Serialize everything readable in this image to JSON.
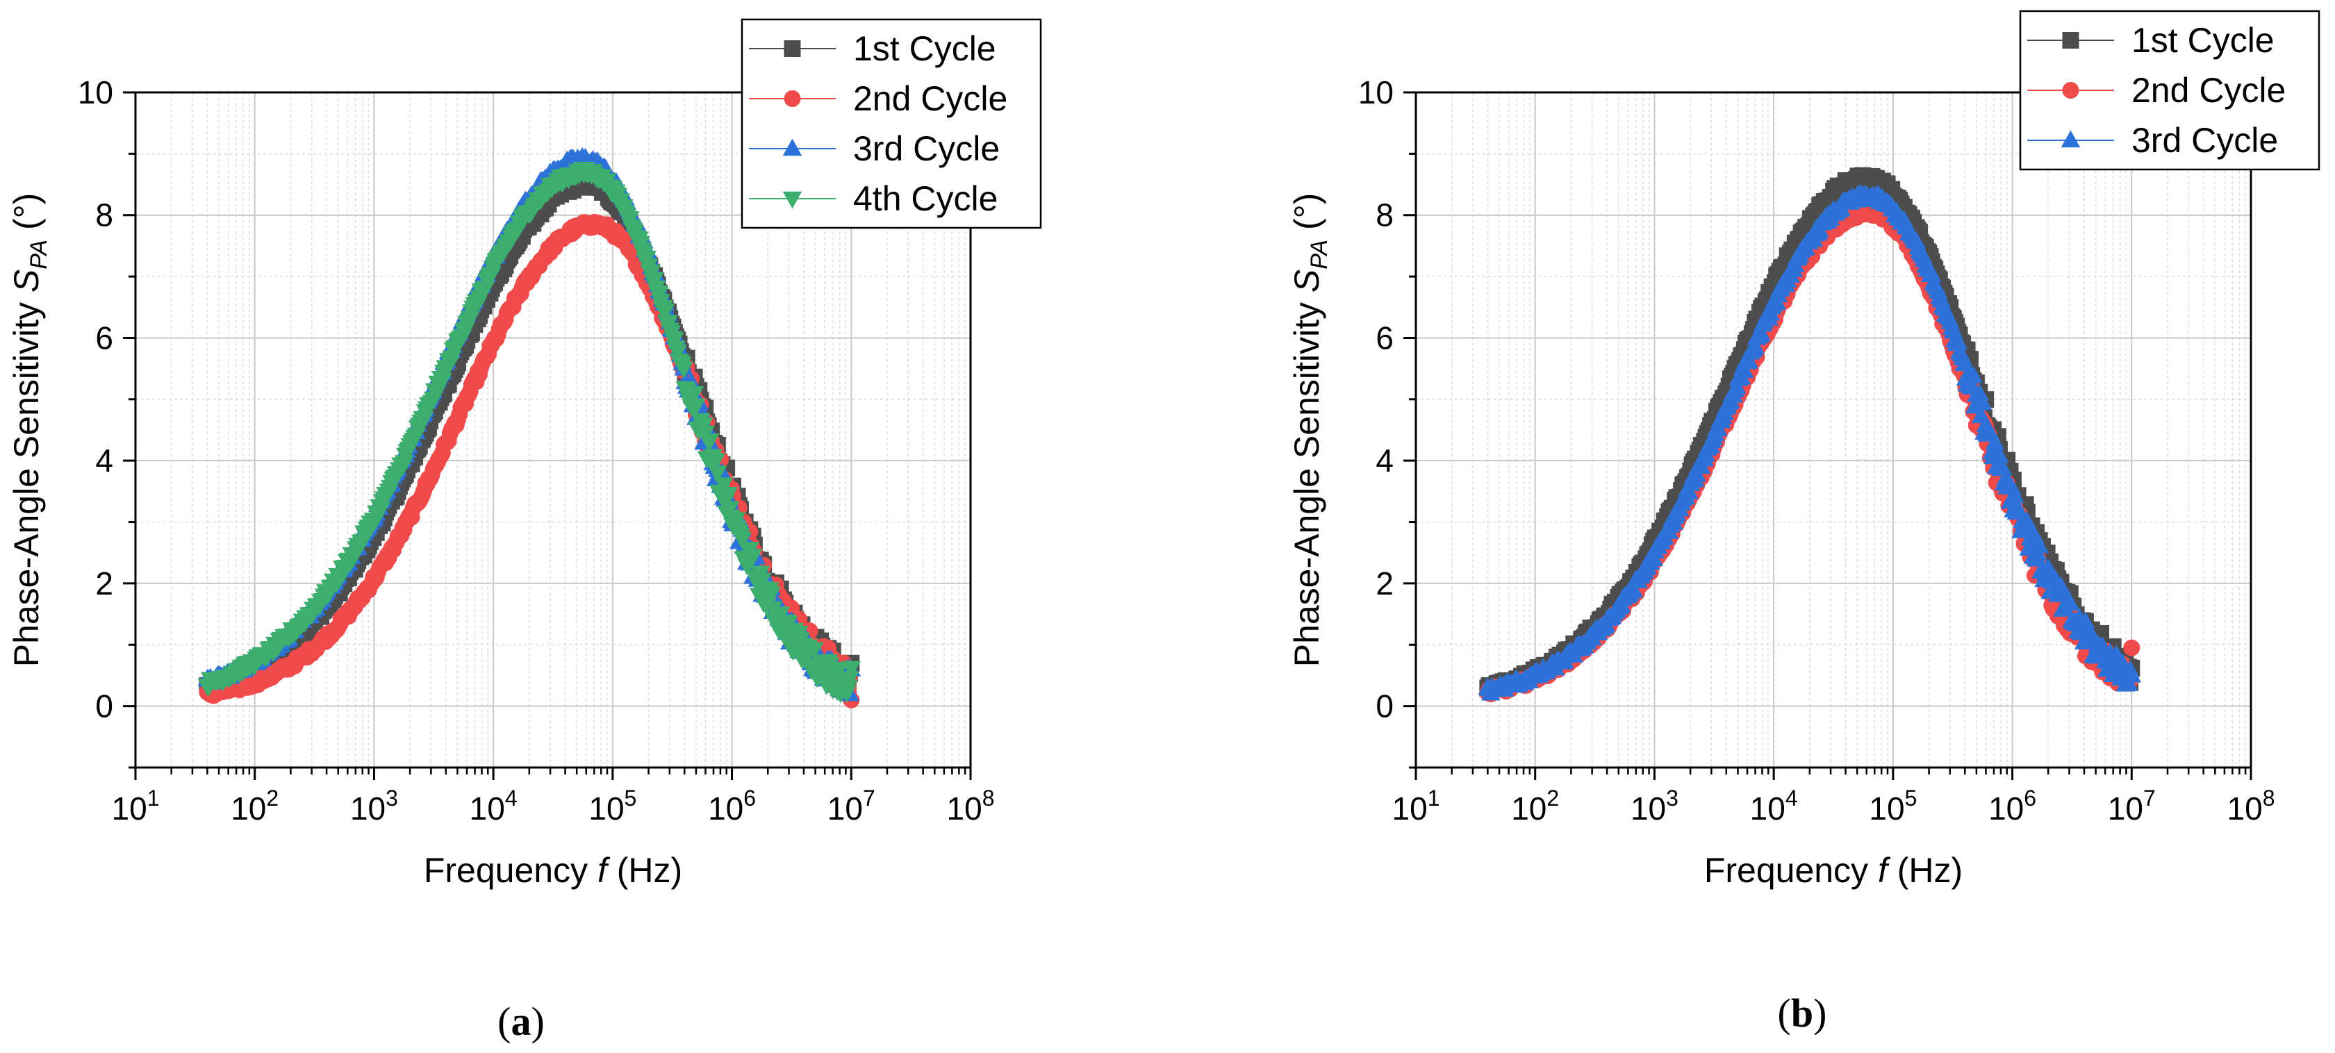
{
  "chart_data": [
    {
      "id": "a",
      "type": "scatter",
      "xscale": "log",
      "xlabel_parts": [
        "Frequency ",
        "f",
        " (Hz)"
      ],
      "ylabel_parts": [
        "Phase-Angle Sensitivity ",
        "S",
        "PA",
        " (°)"
      ],
      "xlim_exp": [
        1,
        8
      ],
      "ylim": [
        -1,
        10
      ],
      "xtick_exponents": [
        1,
        2,
        3,
        4,
        5,
        6,
        7,
        8
      ],
      "ytick_values": [
        0,
        2,
        4,
        6,
        8,
        10
      ],
      "grid": true,
      "legend_position": "top-right",
      "panel_label": "a",
      "series": [
        {
          "name": "1st Cycle",
          "marker": "square",
          "color": "#4d4d4d",
          "peak_hz": 60000,
          "peak": 8.5,
          "w_left": 1.18,
          "w_right": 0.9,
          "tail": 0.09,
          "end_value": 0.7
        },
        {
          "name": "2nd Cycle",
          "marker": "circle",
          "color": "#f04a4a",
          "peak_hz": 70000,
          "peak": 7.85,
          "w_left": 1.12,
          "w_right": 0.88,
          "tail": 0.08,
          "end_value": 0.1
        },
        {
          "name": "3rd Cycle",
          "marker": "triangle-up",
          "color": "#2d72d9",
          "peak_hz": 58000,
          "peak": 8.9,
          "w_left": 1.2,
          "w_right": 0.85,
          "tail": 0.12,
          "end_value": 0.6
        },
        {
          "name": "4th Cycle",
          "marker": "triangle-down",
          "color": "#3cae6e",
          "peak_hz": 60000,
          "peak": 8.7,
          "w_left": 1.22,
          "w_right": 0.84,
          "tail": 0.08,
          "end_value": 0.62
        }
      ],
      "x_range_hz": [
        40,
        10000000
      ]
    },
    {
      "id": "b",
      "type": "scatter",
      "xscale": "log",
      "xlabel_parts": [
        "Frequency ",
        "f",
        " (Hz)"
      ],
      "ylabel_parts": [
        "Phase-Angle Sensitivity ",
        "S",
        "PA",
        " (°)"
      ],
      "xlim_exp": [
        1,
        8
      ],
      "ylim": [
        -1,
        10
      ],
      "xtick_exponents": [
        1,
        2,
        3,
        4,
        5,
        6,
        7,
        8
      ],
      "ytick_values": [
        0,
        2,
        4,
        6,
        8,
        10
      ],
      "grid": true,
      "legend_position": "top-right",
      "panel_label": "b",
      "series": [
        {
          "name": "1st Cycle",
          "marker": "square",
          "color": "#4d4d4d",
          "peak_hz": 60000,
          "peak": 8.6,
          "w_left": 1.15,
          "w_right": 0.92,
          "tail": 0.09,
          "end_value": 0.62
        },
        {
          "name": "2nd Cycle",
          "marker": "circle",
          "color": "#f04a4a",
          "peak_hz": 62000,
          "peak": 8.05,
          "w_left": 1.13,
          "w_right": 0.88,
          "tail": 0.08,
          "end_value": 0.95
        },
        {
          "name": "3rd Cycle",
          "marker": "triangle-up",
          "color": "#2d72d9",
          "peak_hz": 62000,
          "peak": 8.3,
          "w_left": 1.14,
          "w_right": 0.9,
          "tail": 0.09,
          "end_value": 0.5
        }
      ],
      "x_range_hz": [
        40,
        10000000
      ]
    }
  ]
}
